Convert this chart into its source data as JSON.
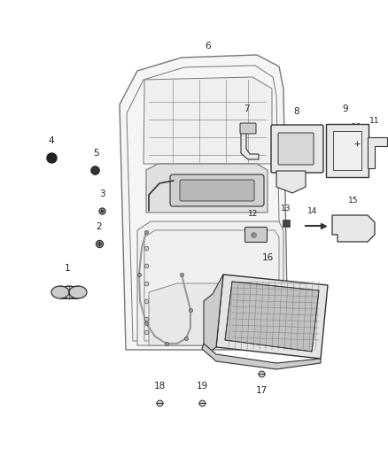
{
  "bg_color": "#ffffff",
  "line_color": "#777777",
  "dark_color": "#333333",
  "mid_color": "#999999",
  "light_gray": "#e8e8e8",
  "mid_gray": "#cccccc",
  "dark_gray": "#aaaaaa",
  "figsize": [
    4.38,
    5.33
  ],
  "dpi": 100,
  "label_fontsize": 7.5,
  "label_color": "#222222"
}
